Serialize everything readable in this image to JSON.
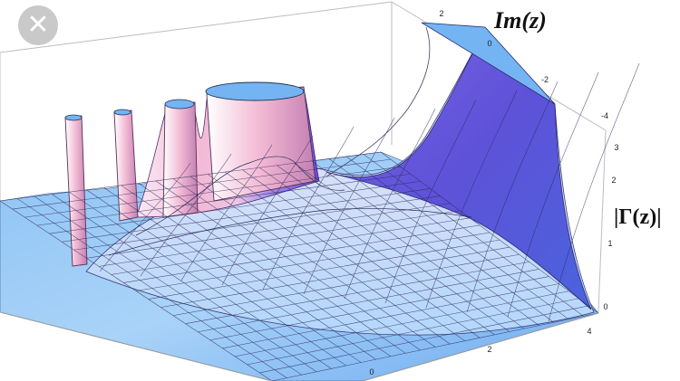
{
  "overlay": {
    "close_glyph": "✕",
    "close_icon": "close-icon"
  },
  "chart_data": {
    "type": "surface3d",
    "function": "|Γ(z)|",
    "title": "",
    "xlabel": "",
    "ylabel": "Im(z)",
    "zlabel": "|Γ(z)|",
    "re_ticks": [
      "0",
      "2",
      "4"
    ],
    "im_ticks": [
      "2",
      "0",
      "-2",
      "-4"
    ],
    "abs_ticks": [
      "0",
      "1",
      "2",
      "3"
    ],
    "colors": {
      "low": "#74b4f3",
      "mid": "#fbe6f1",
      "peak": "#f0a6c8",
      "high": "#6d4fe0",
      "cap": "#74b4f3"
    }
  }
}
